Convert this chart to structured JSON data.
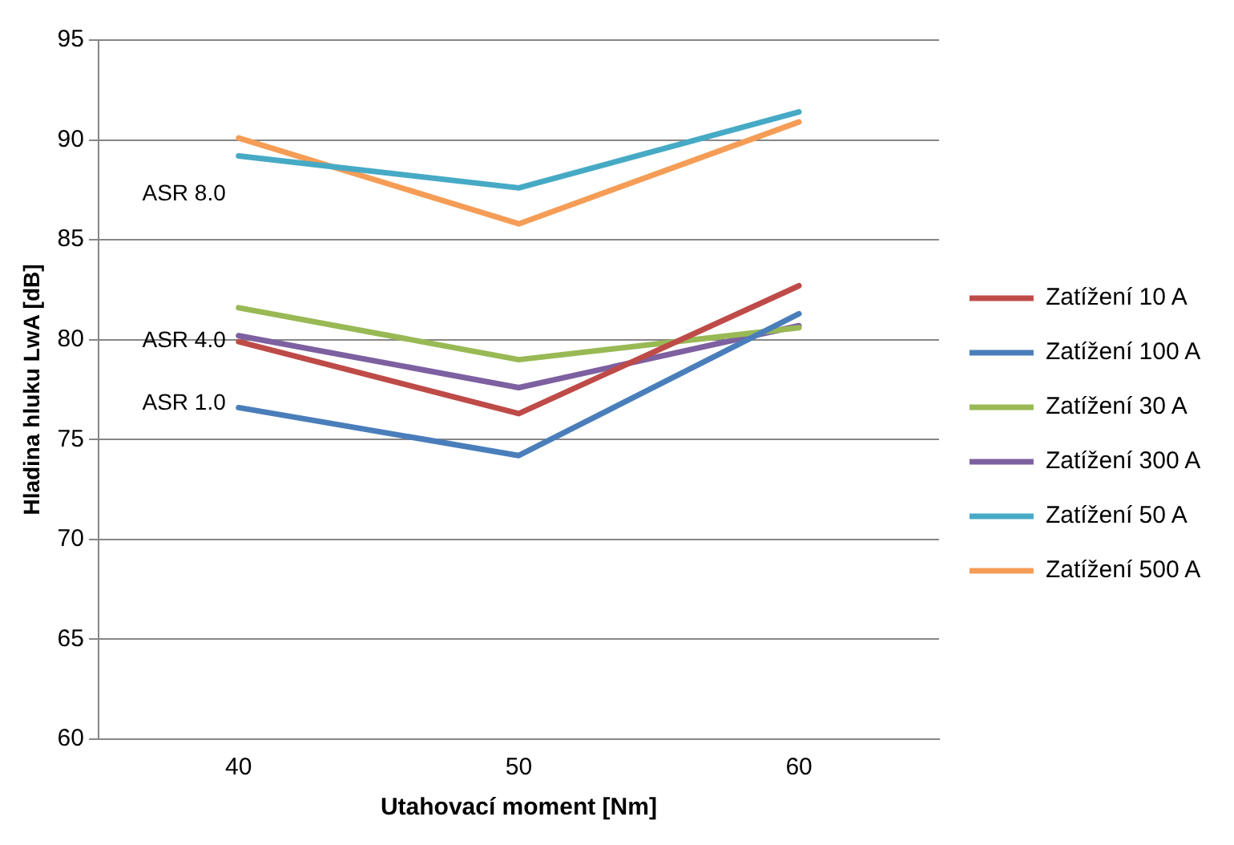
{
  "chart_data": {
    "type": "line",
    "xlabel": "Utahovací moment [Nm]",
    "ylabel": "Hladina hluku LwA [dB]",
    "categories": [
      "40",
      "50",
      "60"
    ],
    "series": [
      {
        "name": "Zatížení 10 A",
        "color": "#be4b48",
        "values": [
          79.9,
          76.3,
          82.7
        ]
      },
      {
        "name": "Zatížení 100 A",
        "color": "#4a7ebb",
        "values": [
          76.6,
          74.2,
          81.3
        ]
      },
      {
        "name": "Zatížení 30 A",
        "color": "#98b954",
        "values": [
          81.6,
          79.0,
          80.6
        ]
      },
      {
        "name": "Zatížení 300 A",
        "color": "#7d60a0",
        "values": [
          80.2,
          77.6,
          80.7
        ]
      },
      {
        "name": "Zatížení 50 A",
        "color": "#46aac5",
        "values": [
          89.2,
          87.6,
          91.4
        ]
      },
      {
        "name": "Zatížení 500 A",
        "color": "#f59d56",
        "values": [
          90.1,
          85.8,
          90.9
        ]
      }
    ],
    "ylim": [
      60,
      95
    ],
    "yticks": [
      60,
      65,
      70,
      75,
      80,
      85,
      90,
      95
    ],
    "grid": "y",
    "legend": "right",
    "marker": "none",
    "line_style": "solid",
    "annotations": [
      "ASR 8.0",
      "ASR 4.0",
      "ASR 1.0"
    ]
  }
}
